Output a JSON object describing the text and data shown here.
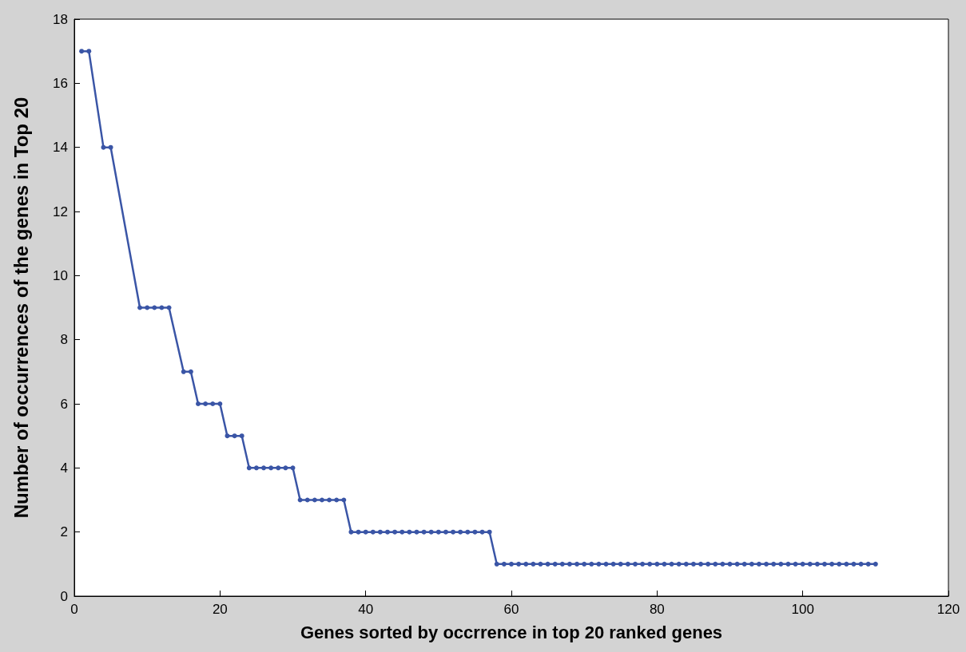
{
  "chart_data": {
    "type": "line",
    "xlabel": "Genes sorted by occrrence in top 20 ranked genes",
    "ylabel": "Number of occurrences of the genes in Top 20",
    "x": [
      1,
      2,
      4,
      5,
      9,
      10,
      11,
      12,
      13,
      15,
      16,
      17,
      18,
      19,
      20,
      21,
      22,
      23,
      24,
      25,
      26,
      27,
      28,
      29,
      30,
      31,
      32,
      33,
      34,
      35,
      36,
      37,
      38,
      39,
      40,
      41,
      42,
      43,
      44,
      45,
      46,
      47,
      48,
      49,
      50,
      51,
      52,
      53,
      54,
      55,
      56,
      57,
      58,
      59,
      60,
      61,
      62,
      63,
      64,
      65,
      66,
      67,
      68,
      69,
      70,
      71,
      72,
      73,
      74,
      75,
      76,
      77,
      78,
      79,
      80,
      81,
      82,
      83,
      84,
      85,
      86,
      87,
      88,
      89,
      90,
      91,
      92,
      93,
      94,
      95,
      96,
      97,
      98,
      99,
      100,
      101,
      102,
      103,
      104,
      105,
      106,
      107,
      108,
      109,
      110
    ],
    "values": [
      17,
      17,
      14,
      14,
      9,
      9,
      9,
      9,
      9,
      7,
      7,
      6,
      6,
      6,
      6,
      5,
      5,
      5,
      4,
      4,
      4,
      4,
      4,
      4,
      4,
      3,
      3,
      3,
      3,
      3,
      3,
      3,
      2,
      2,
      2,
      2,
      2,
      2,
      2,
      2,
      2,
      2,
      2,
      2,
      2,
      2,
      2,
      2,
      2,
      2,
      2,
      2,
      1,
      1,
      1,
      1,
      1,
      1,
      1,
      1,
      1,
      1,
      1,
      1,
      1,
      1,
      1,
      1,
      1,
      1,
      1,
      1,
      1,
      1,
      1,
      1,
      1,
      1,
      1,
      1,
      1,
      1,
      1,
      1,
      1,
      1,
      1,
      1,
      1,
      1,
      1,
      1,
      1,
      1,
      1,
      1,
      1,
      1,
      1,
      1,
      1,
      1,
      1,
      1,
      1
    ],
    "color": "#3a55a6",
    "marker": "circle",
    "grid": false,
    "xlim": [
      0,
      120
    ],
    "xticks": [
      0,
      20,
      40,
      60,
      80,
      100,
      120
    ],
    "ylim": [
      0,
      18
    ],
    "yticks": [
      0,
      2,
      4,
      6,
      8,
      10,
      12,
      14,
      16,
      18
    ]
  }
}
